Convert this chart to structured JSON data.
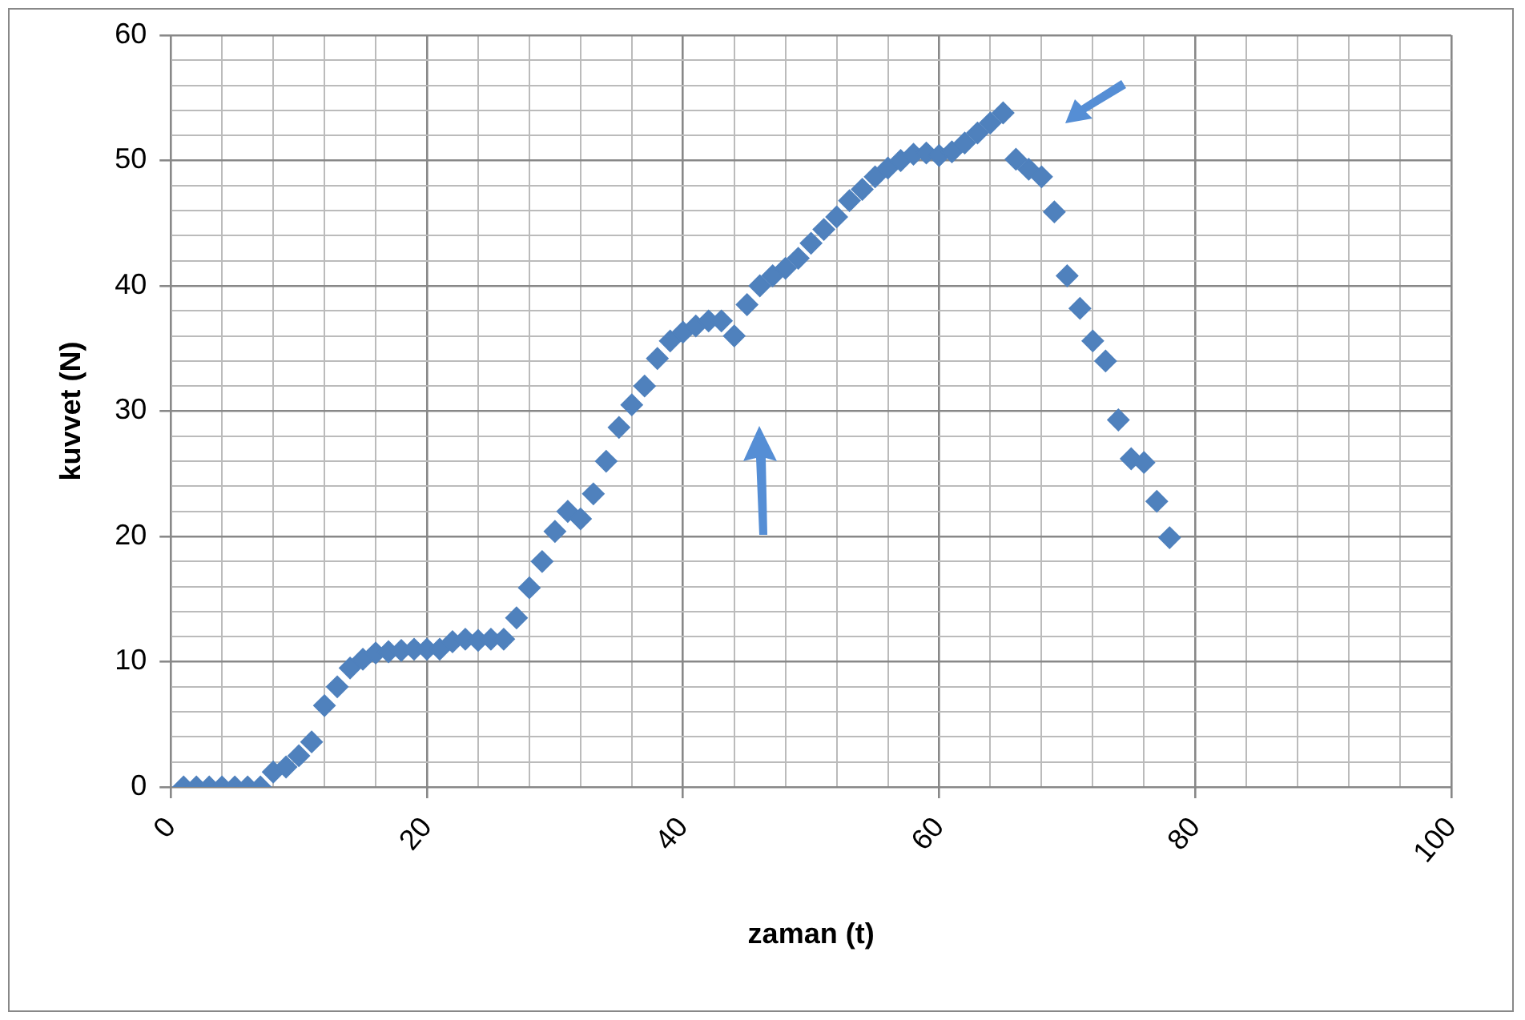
{
  "chart_data": {
    "type": "scatter",
    "xlabel": "zaman (t)",
    "ylabel": "kuvvet (N)",
    "x": [
      1,
      2,
      3,
      4,
      5,
      6,
      7,
      8,
      9,
      10,
      11,
      12,
      13,
      14,
      15,
      16,
      17,
      18,
      19,
      20,
      21,
      22,
      23,
      24,
      25,
      26,
      27,
      28,
      29,
      30,
      31,
      32,
      33,
      34,
      35,
      36,
      37,
      38,
      39,
      40,
      41,
      42,
      43,
      44,
      45,
      46,
      47,
      48,
      49,
      50,
      51,
      52,
      53,
      54,
      55,
      56,
      57,
      58,
      59,
      60,
      61,
      62,
      63,
      64,
      65,
      66,
      67,
      68,
      69,
      70,
      71,
      72,
      73,
      74,
      75,
      76,
      77,
      78
    ],
    "series": [
      {
        "color": "#4f81bd",
        "values": [
          0,
          0,
          0,
          0,
          0,
          0,
          0,
          1.2,
          1.6,
          2.5,
          3.6,
          6.5,
          8,
          9.5,
          10.2,
          10.7,
          10.8,
          10.9,
          11,
          11,
          11,
          11.6,
          11.8,
          11.7,
          11.8,
          11.8,
          13.5,
          15.9,
          18,
          20.4,
          22,
          21.4,
          23.4,
          26,
          28.7,
          30.5,
          32,
          34.2,
          35.6,
          36.3,
          36.8,
          37.2,
          37.2,
          36,
          38.5,
          40,
          40.8,
          41.4,
          42.2,
          43.4,
          44.5,
          45.5,
          46.8,
          47.7,
          48.7,
          49.4,
          50,
          50.5,
          50.6,
          50.4,
          50.7,
          51.4,
          52.2,
          53,
          53.8,
          50.1,
          49.3,
          48.7,
          45.9,
          40.8,
          38.2,
          35.6,
          34,
          29.3,
          26.2,
          25.9,
          22.8,
          19.9
        ]
      }
    ],
    "xlim": [
      0,
      100
    ],
    "ylim": [
      0,
      60
    ],
    "xticks": [
      0,
      {
        "value": 4,
        "label": null
      },
      {
        "value": 8,
        "label": null
      },
      {
        "value": 12,
        "label": null
      },
      {
        "value": 16,
        "label": null
      },
      20,
      {
        "value": 24,
        "label": null
      },
      {
        "value": 28,
        "label": null
      },
      {
        "value": 32,
        "label": null
      },
      {
        "value": 36,
        "label": null
      },
      40,
      {
        "value": 44,
        "label": null
      },
      {
        "value": 48,
        "label": null
      },
      {
        "value": 52,
        "label": null
      },
      {
        "value": 56,
        "label": null
      },
      60,
      {
        "value": 64,
        "label": null
      },
      {
        "value": 68,
        "label": null
      },
      {
        "value": 72,
        "label": null
      },
      {
        "value": 76,
        "label": null
      },
      80,
      {
        "value": 84,
        "label": null
      },
      {
        "value": 88,
        "label": null
      },
      {
        "value": 92,
        "label": null
      },
      {
        "value": 96,
        "label": null
      },
      100
    ],
    "yticks": [
      0,
      {
        "value": 2,
        "label": null
      },
      {
        "value": 4,
        "label": null
      },
      {
        "value": 6,
        "label": null
      },
      {
        "value": 8,
        "label": null
      },
      10,
      {
        "value": 12,
        "label": null
      },
      {
        "value": 14,
        "label": null
      },
      {
        "value": 16,
        "label": null
      },
      {
        "value": 18,
        "label": null
      },
      20,
      {
        "value": 22,
        "label": null
      },
      {
        "value": 24,
        "label": null
      },
      {
        "value": 26,
        "label": null
      },
      {
        "value": 28,
        "label": null
      },
      30,
      {
        "value": 32,
        "label": null
      },
      {
        "value": 34,
        "label": null
      },
      {
        "value": 36,
        "label": null
      },
      {
        "value": 38,
        "label": null
      },
      40,
      {
        "value": 42,
        "label": null
      },
      {
        "value": 44,
        "label": null
      },
      {
        "value": 46,
        "label": null
      },
      {
        "value": 48,
        "label": null
      },
      50,
      {
        "value": 52,
        "label": null
      },
      {
        "value": 54,
        "label": null
      },
      {
        "value": 56,
        "label": null
      },
      {
        "value": 58,
        "label": null
      },
      60
    ],
    "grid": true,
    "marker": "diamond",
    "legend": false
  }
}
